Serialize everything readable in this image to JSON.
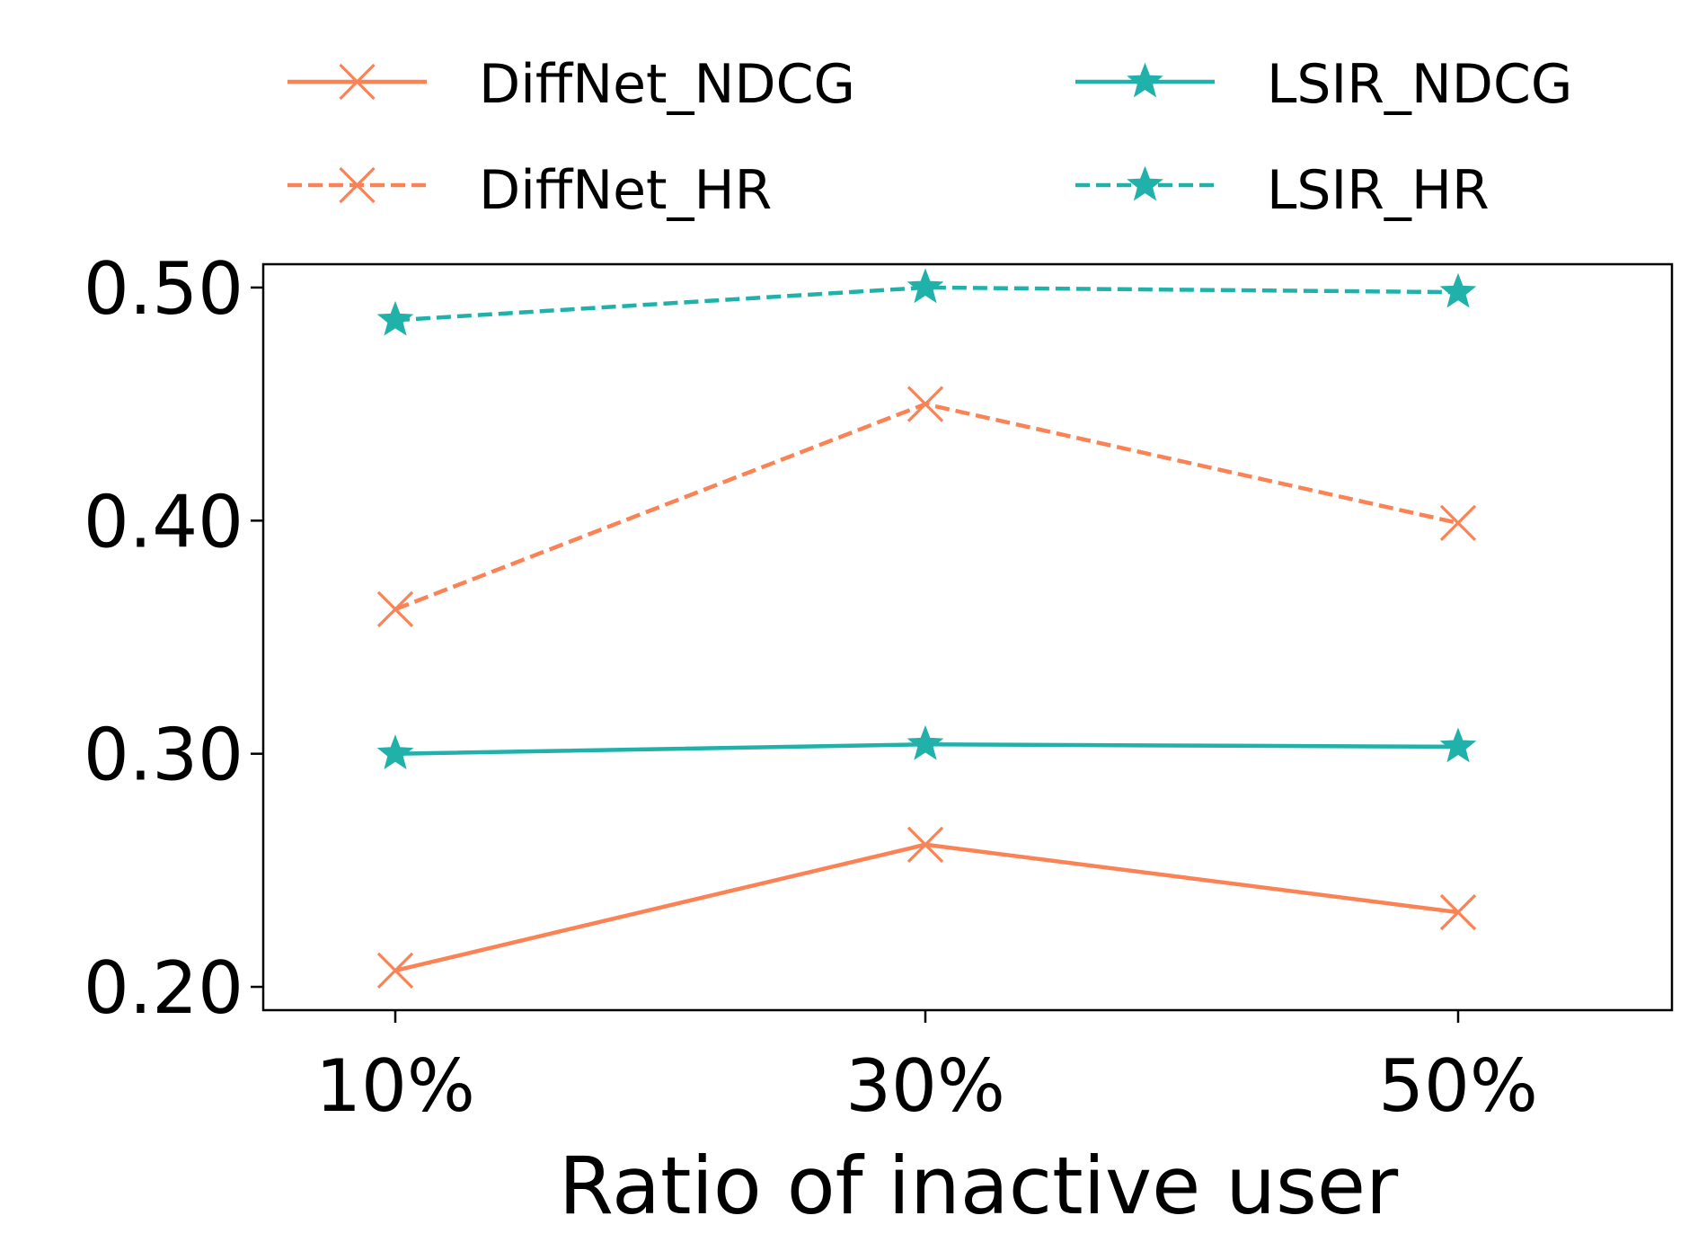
{
  "chart_data": {
    "type": "line",
    "title": "",
    "xlabel": "Ratio of inactive user",
    "ylabel": "",
    "categories": [
      "10%",
      "30%",
      "50%"
    ],
    "ylim": [
      0.19,
      0.51
    ],
    "yticks": [
      0.2,
      0.3,
      0.4,
      0.5
    ],
    "ytick_labels": [
      "0.20",
      "0.30",
      "0.40",
      "0.50"
    ],
    "grid": false,
    "legend_position": "top",
    "series": [
      {
        "name": "DiffNet_NDCG",
        "values": [
          0.207,
          0.261,
          0.232
        ],
        "color": "#FA8254",
        "dash": "solid",
        "marker": "x-icon"
      },
      {
        "name": "DiffNet_HR",
        "values": [
          0.362,
          0.45,
          0.399
        ],
        "color": "#FA8254",
        "dash": "dashed",
        "marker": "x-icon"
      },
      {
        "name": "LSIR_NDCG",
        "values": [
          0.3,
          0.304,
          0.303
        ],
        "color": "#20B2AA",
        "dash": "solid",
        "marker": "star-icon"
      },
      {
        "name": "LSIR_HR",
        "values": [
          0.486,
          0.5,
          0.498
        ],
        "color": "#20B2AA",
        "dash": "dashed",
        "marker": "star-icon"
      }
    ]
  }
}
